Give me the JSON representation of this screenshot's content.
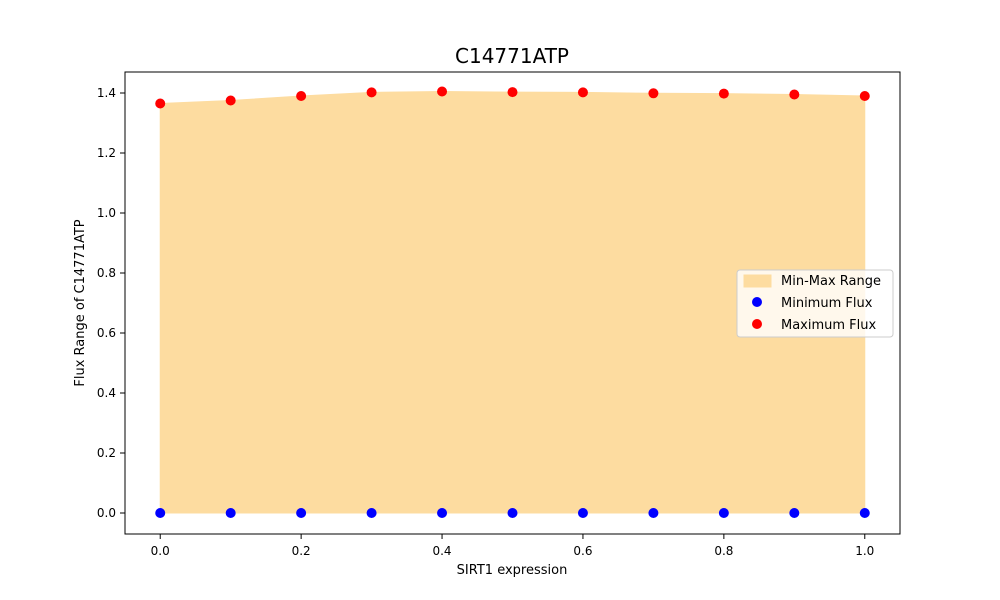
{
  "chart_data": {
    "type": "scatter",
    "title": "C14771ATP",
    "xlabel": "SIRT1 expression",
    "ylabel": "Flux Range of C14771ATP",
    "x": [
      0.0,
      0.1,
      0.2,
      0.3,
      0.4,
      0.5,
      0.6,
      0.7,
      0.8,
      0.9,
      1.0
    ],
    "series": [
      {
        "name": "Minimum Flux",
        "color": "#0000ff",
        "values": [
          0,
          0,
          0,
          0,
          0,
          0,
          0,
          0,
          0,
          0,
          0
        ]
      },
      {
        "name": "Maximum Flux",
        "color": "#ff0000",
        "values": [
          1.365,
          1.375,
          1.39,
          1.402,
          1.405,
          1.403,
          1.402,
          1.399,
          1.398,
          1.395,
          1.39
        ]
      }
    ],
    "range_fill": {
      "name": "Min-Max Range",
      "color": "#fddca0"
    },
    "xlim": [
      -0.05,
      1.05
    ],
    "ylim": [
      -0.07,
      1.47
    ],
    "xticks": [
      "0.0",
      "0.2",
      "0.4",
      "0.6",
      "0.8",
      "1.0"
    ],
    "yticks": [
      "0.0",
      "0.2",
      "0.4",
      "0.6",
      "0.8",
      "1.0",
      "1.2",
      "1.4"
    ],
    "legend_position": "center-right",
    "grid": false
  }
}
